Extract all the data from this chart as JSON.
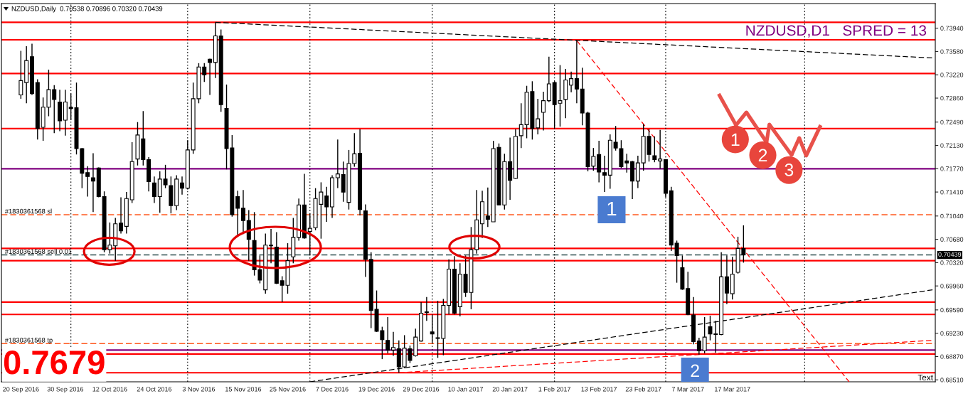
{
  "chart_data": {
    "type": "candlestick",
    "title": "NZDUSD,Daily  0.70538 0.70896 0.70320 0.70439",
    "categories": [
      "20 Sep 2016",
      null,
      null,
      null,
      null,
      null,
      null,
      null,
      "30 Sep 2016",
      null,
      null,
      null,
      null,
      null,
      null,
      null,
      "12 Oct 2016",
      null,
      null,
      null,
      null,
      null,
      null,
      null,
      "24 Oct 2016",
      null,
      null,
      null,
      null,
      null,
      null,
      null,
      "3 Nov 2016",
      null,
      null,
      null,
      null,
      null,
      null,
      null,
      "15 Nov 2016",
      null,
      null,
      null,
      null,
      null,
      null,
      null,
      "25 Nov 2016",
      null,
      null,
      null,
      null,
      null,
      null,
      null,
      "7 Dec 2016",
      null,
      null,
      null,
      null,
      null,
      null,
      null,
      "19 Dec 2016",
      null,
      null,
      null,
      null,
      null,
      null,
      null,
      "29 Dec 2016",
      null,
      null,
      null,
      null,
      null,
      null,
      null,
      "10 Jan 2017",
      null,
      null,
      null,
      null,
      null,
      null,
      null,
      "20 Jan 2017",
      null,
      null,
      null,
      null,
      null,
      null,
      null,
      "1 Feb 2017",
      null,
      null,
      null,
      null,
      null,
      null,
      null,
      "13 Feb 2017",
      null,
      null,
      null,
      null,
      null,
      null,
      null,
      "23 Feb 2017",
      null,
      null,
      null,
      null,
      null,
      null,
      null,
      "7 Mar 2017",
      null,
      null,
      null,
      null,
      null,
      null,
      null,
      "17 Mar 2017",
      null,
      null,
      null,
      null,
      null,
      null,
      null,
      null,
      null,
      null,
      null,
      null,
      null,
      null,
      null,
      null,
      null,
      null,
      null,
      null,
      null,
      null,
      null,
      null,
      null,
      null,
      null,
      null,
      null,
      null,
      null,
      null,
      null,
      null,
      null,
      null
    ],
    "ohlc": [
      [
        0.7291,
        0.7359,
        0.7285,
        0.7313
      ],
      [
        0.731,
        0.7366,
        0.7278,
        0.7344
      ],
      [
        0.735,
        0.737,
        0.7291,
        0.7293
      ],
      [
        0.731,
        0.7315,
        0.7222,
        0.7239
      ],
      [
        0.7241,
        0.7287,
        0.722,
        0.7272
      ],
      [
        0.7272,
        0.733,
        0.7258,
        0.7299
      ],
      [
        0.7299,
        0.7306,
        0.7232,
        0.7284
      ],
      [
        0.728,
        0.7299,
        0.7235,
        0.7251
      ],
      [
        0.7252,
        0.7299,
        0.7228,
        0.728
      ],
      [
        0.7272,
        0.7293,
        0.7252,
        0.727
      ],
      [
        0.7271,
        0.731,
        0.7199,
        0.7208
      ],
      [
        0.7208,
        0.7209,
        0.7147,
        0.717
      ],
      [
        0.7171,
        0.7181,
        0.7134,
        0.7165
      ],
      [
        0.7163,
        0.7201,
        0.711,
        0.7158
      ],
      [
        0.7178,
        0.7179,
        0.7133,
        0.7134
      ],
      [
        0.7134,
        0.7142,
        0.7048,
        0.7052
      ],
      [
        0.7052,
        0.7094,
        0.7046,
        0.7059
      ],
      [
        0.7058,
        0.7101,
        0.7035,
        0.7092
      ],
      [
        0.7093,
        0.7133,
        0.7077,
        0.7081
      ],
      [
        0.7088,
        0.7141,
        0.7077,
        0.7131
      ],
      [
        0.7129,
        0.7218,
        0.7124,
        0.7188
      ],
      [
        0.7192,
        0.7249,
        0.7182,
        0.7229
      ],
      [
        0.7223,
        0.7266,
        0.7182,
        0.7191
      ],
      [
        0.7191,
        0.7195,
        0.7142,
        0.7157
      ],
      [
        0.7155,
        0.7165,
        0.7124,
        0.7134
      ],
      [
        0.7134,
        0.7173,
        0.7109,
        0.7161
      ],
      [
        0.7161,
        0.7183,
        0.7147,
        0.7152
      ],
      [
        0.7151,
        0.7165,
        0.7108,
        0.712
      ],
      [
        0.712,
        0.7167,
        0.7113,
        0.7161
      ],
      [
        0.7155,
        0.7165,
        0.7137,
        0.7147
      ],
      [
        0.7147,
        0.7221,
        0.7145,
        0.7206
      ],
      [
        0.7206,
        0.731,
        0.72,
        0.7285
      ],
      [
        0.7285,
        0.734,
        0.7278,
        0.7334
      ],
      [
        0.7334,
        0.734,
        0.7311,
        0.7322
      ],
      [
        0.7346,
        0.7347,
        0.7291,
        0.7341
      ],
      [
        0.7341,
        0.7403,
        0.7317,
        0.7382
      ],
      [
        0.7382,
        0.7392,
        0.7265,
        0.7276
      ],
      [
        0.727,
        0.7307,
        0.7176,
        0.7208
      ],
      [
        0.7209,
        0.7229,
        0.7103,
        0.7106
      ],
      [
        0.7134,
        0.7143,
        0.7073,
        0.7116
      ],
      [
        0.7116,
        0.7144,
        0.7076,
        0.7097
      ],
      [
        0.7097,
        0.7113,
        0.7035,
        0.7068
      ],
      [
        0.7066,
        0.711,
        0.7012,
        0.7021
      ],
      [
        0.7021,
        0.7043,
        0.7,
        0.7005
      ],
      [
        0.699,
        0.7077,
        0.6984,
        0.7059
      ],
      [
        0.7059,
        0.7084,
        0.7031,
        0.7058
      ],
      [
        0.7056,
        0.7079,
        0.6999,
        0.7
      ],
      [
        0.7004,
        0.7011,
        0.6971,
        0.6997
      ],
      [
        0.6997,
        0.7062,
        0.6984,
        0.7035
      ],
      [
        0.7041,
        0.7101,
        0.7031,
        0.7071
      ],
      [
        0.7071,
        0.7131,
        0.7066,
        0.7121
      ],
      [
        0.7121,
        0.7169,
        0.7069,
        0.707
      ],
      [
        0.708,
        0.7108,
        0.7043,
        0.7085
      ],
      [
        0.7086,
        0.7147,
        0.7082,
        0.7131
      ],
      [
        0.7122,
        0.7156,
        0.7069,
        0.7141
      ],
      [
        0.7135,
        0.7149,
        0.7095,
        0.7118
      ],
      [
        0.7118,
        0.7167,
        0.7101,
        0.7163
      ],
      [
        0.7163,
        0.7222,
        0.7147,
        0.7169
      ],
      [
        0.7168,
        0.7188,
        0.7126,
        0.7141
      ],
      [
        0.7125,
        0.7206,
        0.7114,
        0.7185
      ],
      [
        0.7185,
        0.7232,
        0.718,
        0.72
      ],
      [
        0.7201,
        0.7238,
        0.7105,
        0.7114
      ],
      [
        0.7112,
        0.7122,
        0.701,
        0.7037
      ],
      [
        0.7037,
        0.7048,
        0.6931,
        0.6958
      ],
      [
        0.696,
        0.6989,
        0.6925,
        0.6926
      ],
      [
        0.6927,
        0.6933,
        0.6883,
        0.6913
      ],
      [
        0.6912,
        0.6948,
        0.6892,
        0.6897
      ],
      [
        0.6897,
        0.6925,
        0.6888,
        0.6901
      ],
      [
        0.6899,
        0.6912,
        0.6862,
        0.6871
      ],
      [
        0.6871,
        0.692,
        0.6869,
        0.69
      ],
      [
        0.6899,
        0.6904,
        0.6877,
        0.6881
      ],
      [
        0.6888,
        0.693,
        0.6887,
        0.6917
      ],
      [
        0.6911,
        0.6971,
        0.691,
        0.6954
      ],
      [
        0.6956,
        0.6979,
        0.6942,
        0.6955
      ],
      [
        0.6925,
        0.6951,
        0.6908,
        0.6922
      ],
      [
        0.6916,
        0.6973,
        0.6885,
        0.6915
      ],
      [
        0.6915,
        0.6976,
        0.6889,
        0.6966
      ],
      [
        0.6966,
        0.7037,
        0.6952,
        0.7022
      ],
      [
        0.7022,
        0.7042,
        0.6952,
        0.6954
      ],
      [
        0.6964,
        0.7031,
        0.6949,
        0.7014
      ],
      [
        0.7014,
        0.7043,
        0.6979,
        0.6986
      ],
      [
        0.6986,
        0.7087,
        0.696,
        0.7052
      ],
      [
        0.7052,
        0.7144,
        0.7046,
        0.7098
      ],
      [
        0.7092,
        0.7143,
        0.707,
        0.7126
      ],
      [
        0.7104,
        0.7148,
        0.7087,
        0.7099
      ],
      [
        0.7095,
        0.722,
        0.7095,
        0.7208
      ],
      [
        0.721,
        0.7216,
        0.7121,
        0.7121
      ],
      [
        0.7121,
        0.72,
        0.7114,
        0.7188
      ],
      [
        0.7188,
        0.7225,
        0.7129,
        0.7159
      ],
      [
        0.7162,
        0.7238,
        0.7161,
        0.7227
      ],
      [
        0.7228,
        0.7278,
        0.7209,
        0.7245
      ],
      [
        0.7245,
        0.7305,
        0.7224,
        0.7295
      ],
      [
        0.7296,
        0.7312,
        0.7222,
        0.7239
      ],
      [
        0.724,
        0.7285,
        0.723,
        0.7254
      ],
      [
        0.7264,
        0.7296,
        0.7236,
        0.7282
      ],
      [
        0.7282,
        0.735,
        0.728,
        0.7308
      ],
      [
        0.731,
        0.7312,
        0.724,
        0.7276
      ],
      [
        0.7278,
        0.7337,
        0.7242,
        0.7282
      ],
      [
        0.7284,
        0.7331,
        0.7255,
        0.7314
      ],
      [
        0.7306,
        0.7327,
        0.7295,
        0.7316
      ],
      [
        0.7316,
        0.7375,
        0.7278,
        0.73
      ],
      [
        0.73,
        0.7333,
        0.7244,
        0.7263
      ],
      [
        0.7263,
        0.7265,
        0.7173,
        0.718
      ],
      [
        0.7181,
        0.7209,
        0.7174,
        0.7196
      ],
      [
        0.7199,
        0.722,
        0.7156,
        0.7172
      ],
      [
        0.7171,
        0.7197,
        0.7141,
        0.7167
      ],
      [
        0.7167,
        0.723,
        0.7146,
        0.7221
      ],
      [
        0.7218,
        0.7243,
        0.7205,
        0.7209
      ],
      [
        0.7208,
        0.7221,
        0.7178,
        0.718
      ],
      [
        0.7189,
        0.72,
        0.7171,
        0.7186
      ],
      [
        0.7188,
        0.7189,
        0.713,
        0.7158
      ],
      [
        0.7158,
        0.7197,
        0.7147,
        0.7186
      ],
      [
        0.7186,
        0.7246,
        0.7174,
        0.7227
      ],
      [
        0.7227,
        0.7238,
        0.7188,
        0.7199
      ],
      [
        0.7197,
        0.7227,
        0.7187,
        0.7191
      ],
      [
        0.7189,
        0.7237,
        0.7177,
        0.7192
      ],
      [
        0.7191,
        0.7192,
        0.7133,
        0.7139
      ],
      [
        0.7143,
        0.7149,
        0.705,
        0.7059
      ],
      [
        0.7062,
        0.7066,
        0.7001,
        0.7043
      ],
      [
        0.7024,
        0.7043,
        0.699,
        0.6991
      ],
      [
        0.6992,
        0.7018,
        0.6951,
        0.6952
      ],
      [
        0.6951,
        0.6979,
        0.6906,
        0.691
      ],
      [
        0.6911,
        0.6916,
        0.689,
        0.6896
      ],
      [
        0.6896,
        0.6948,
        0.6892,
        0.6917
      ],
      [
        0.6933,
        0.695,
        0.6912,
        0.6922
      ],
      [
        0.6922,
        0.6942,
        0.6893,
        0.6921
      ],
      [
        0.6921,
        0.7048,
        0.692,
        0.701
      ],
      [
        0.701,
        0.7043,
        0.6968,
        0.6985
      ],
      [
        0.6984,
        0.7041,
        0.6975,
        0.7014
      ],
      [
        0.7017,
        0.7072,
        0.7015,
        0.7054
      ],
      [
        0.70538,
        0.70896,
        0.7032,
        0.70439
      ],
      null,
      null,
      null,
      null,
      null,
      null,
      null,
      null,
      null,
      null,
      null,
      null,
      null,
      null,
      null,
      null,
      null,
      null,
      null,
      null,
      null,
      null,
      null,
      null,
      null,
      null,
      null,
      null,
      null,
      null,
      null,
      null,
      null,
      null
    ],
    "series": [
      {
        "type": "line",
        "color": "#000000",
        "values": [
          null,
          null,
          null,
          null,
          null,
          null,
          null,
          null,
          null,
          null,
          null,
          null,
          null,
          null,
          null,
          null,
          null,
          null,
          null,
          null,
          null,
          null,
          null,
          null,
          null,
          null,
          null,
          null,
          null,
          null,
          null,
          null,
          null,
          null,
          null,
          0.7403,
          null,
          null,
          null,
          null,
          null,
          null,
          null,
          null,
          null,
          null,
          null,
          null,
          null,
          null,
          null,
          null,
          null,
          null,
          null,
          null,
          null,
          null,
          null,
          null,
          null,
          null,
          null,
          null,
          null,
          null,
          null,
          null,
          null,
          null,
          null,
          null,
          null,
          null,
          null,
          null,
          null,
          null,
          null,
          null,
          null,
          null,
          null,
          null,
          null,
          null,
          null,
          null,
          null,
          null,
          null,
          null,
          null,
          null,
          null,
          null,
          null,
          null,
          null,
          null,
          null,
          null,
          null,
          null,
          null,
          null,
          null,
          null,
          null,
          null,
          null,
          null,
          null,
          null,
          null,
          null,
          null,
          null,
          null,
          null,
          null,
          null,
          null,
          null,
          null,
          null,
          null,
          null,
          null,
          null,
          null,
          null,
          null,
          null,
          null,
          null,
          null,
          null,
          null,
          null,
          null,
          null,
          null,
          null,
          null,
          null,
          null,
          null,
          null,
          null,
          null,
          null,
          null,
          null,
          null,
          null,
          null,
          null,
          null,
          null,
          null,
          null,
          null,
          null,
          0.7348
        ]
      },
      {
        "type": "line",
        "color": "#ff0000",
        "values": [
          null,
          null,
          null,
          null,
          null,
          null,
          null,
          null,
          null,
          null,
          null,
          null,
          null,
          null,
          null,
          null,
          null,
          null,
          null,
          null,
          null,
          null,
          null,
          null,
          null,
          null,
          null,
          null,
          null,
          null,
          null,
          null,
          null,
          null,
          null,
          null,
          null,
          null,
          null,
          null,
          null,
          null,
          null,
          null,
          null,
          null,
          null,
          null,
          null,
          null,
          null,
          null,
          null,
          null,
          null,
          null,
          null,
          null,
          null,
          null,
          null,
          null,
          null,
          null,
          null,
          null,
          null,
          null,
          null,
          null,
          null,
          null,
          null,
          null,
          null,
          null,
          null,
          null,
          null,
          null,
          null,
          null,
          null,
          null,
          null,
          null,
          null,
          null,
          null,
          null,
          null,
          null,
          null,
          null,
          null,
          null,
          null,
          null,
          null,
          null,
          0.7375,
          null,
          null,
          null,
          null,
          null,
          null,
          null,
          null,
          null,
          null,
          null,
          null,
          null,
          null,
          null,
          null,
          null,
          null,
          null,
          null,
          null,
          null,
          null,
          null,
          null,
          null,
          null,
          null,
          null,
          null,
          null,
          null,
          null,
          null,
          null,
          null,
          null,
          null,
          null,
          null,
          null,
          null,
          null,
          null,
          null,
          null,
          null,
          null,
          0.6848,
          null,
          null,
          null,
          null,
          null,
          null,
          null,
          null,
          null,
          null,
          null,
          null,
          null,
          null,
          null
        ]
      },
      {
        "type": "line",
        "color": "#000000",
        "values": [
          null,
          null,
          null,
          null,
          null,
          null,
          null,
          null,
          null,
          null,
          null,
          null,
          null,
          null,
          null,
          null,
          null,
          null,
          null,
          null,
          null,
          null,
          null,
          null,
          null,
          null,
          null,
          null,
          null,
          null,
          null,
          null,
          null,
          null,
          null,
          null,
          null,
          null,
          null,
          null,
          null,
          null,
          null,
          null,
          null,
          null,
          null,
          null,
          null,
          null,
          null,
          null,
          0.6848,
          null,
          null,
          null,
          null,
          null,
          null,
          null,
          null,
          null,
          null,
          null,
          null,
          null,
          null,
          null,
          null,
          null,
          null,
          null,
          null,
          null,
          null,
          null,
          null,
          null,
          null,
          null,
          null,
          null,
          null,
          null,
          null,
          null,
          null,
          null,
          null,
          null,
          null,
          null,
          null,
          null,
          null,
          null,
          null,
          null,
          null,
          null,
          null,
          null,
          null,
          null,
          null,
          null,
          null,
          null,
          null,
          null,
          null,
          null,
          null,
          null,
          null,
          null,
          null,
          null,
          null,
          null,
          null,
          null,
          null,
          null,
          null,
          null,
          null,
          null,
          null,
          null,
          null,
          null,
          null,
          null,
          null,
          null,
          null,
          null,
          null,
          null,
          null,
          null,
          null,
          null,
          null,
          null,
          null,
          null,
          null,
          null,
          null,
          null,
          null,
          null,
          null,
          null,
          null,
          null,
          null,
          null,
          null,
          null,
          null,
          null,
          0.699
        ]
      },
      {
        "type": "line",
        "color": "#ff0000",
        "values": [
          null,
          null,
          null,
          null,
          null,
          null,
          null,
          null,
          null,
          null,
          null,
          null,
          null,
          null,
          null,
          null,
          null,
          null,
          null,
          null,
          null,
          null,
          null,
          null,
          null,
          null,
          null,
          null,
          null,
          null,
          null,
          null,
          null,
          null,
          null,
          null,
          null,
          null,
          null,
          null,
          null,
          null,
          null,
          null,
          null,
          null,
          null,
          null,
          null,
          null,
          null,
          null,
          null,
          null,
          null,
          null,
          null,
          null,
          null,
          null,
          null,
          null,
          null,
          null,
          null,
          null,
          null,
          null,
          0.6862,
          null,
          null,
          null,
          null,
          null,
          null,
          null,
          null,
          null,
          null,
          null,
          null,
          null,
          null,
          null,
          null,
          null,
          null,
          null,
          null,
          null,
          null,
          null,
          null,
          null,
          null,
          null,
          null,
          null,
          null,
          null,
          null,
          null,
          null,
          null,
          null,
          null,
          null,
          null,
          null,
          null,
          null,
          null,
          null,
          null,
          null,
          null,
          null,
          null,
          null,
          null,
          null,
          null,
          null,
          null,
          null,
          null,
          null,
          null,
          null,
          null,
          null,
          null,
          null,
          null,
          null,
          null,
          null,
          null,
          null,
          null,
          null,
          null,
          null,
          null,
          null,
          null,
          null,
          null,
          null,
          null,
          null,
          null,
          null,
          null,
          null,
          null,
          null,
          null,
          null,
          null,
          null,
          null,
          null,
          null,
          0.6912
        ]
      }
    ],
    "line_style": "dashed",
    "ylim": [
      0.6848,
      0.7432
    ],
    "yticks": [
      {
        "value": 0.7394,
        "label": "0.73940"
      },
      {
        "value": 0.7358,
        "label": "0.73580"
      },
      {
        "value": 0.7322,
        "label": "0.73220"
      },
      {
        "value": 0.7286,
        "label": "0.72860"
      },
      {
        "value": 0.7249,
        "label": "0.72490"
      },
      {
        "value": 0.7213,
        "label": "0.72130"
      },
      {
        "value": 0.7177,
        "label": "0.71770"
      },
      {
        "value": 0.7141,
        "label": "0.71410"
      },
      {
        "value": 0.7104,
        "label": "0.71040"
      },
      {
        "value": 0.7068,
        "label": "0.70680"
      },
      {
        "value": 0.7032,
        "label": "0.70320"
      },
      {
        "value": 0.6996,
        "label": "0.69960"
      },
      {
        "value": 0.6959,
        "label": "0.69590"
      },
      {
        "value": 0.6923,
        "label": "0.69230"
      },
      {
        "value": 0.6887,
        "label": "0.68870"
      },
      {
        "value": 0.6851,
        "label": "0.68510"
      }
    ],
    "ref_lines": [
      {
        "axis": "y",
        "value": 0.7403,
        "color": "#ff0000"
      },
      {
        "axis": "y",
        "value": 0.7376,
        "color": "#ff0000"
      },
      {
        "axis": "y",
        "value": 0.7324,
        "color": "#ff0000"
      },
      {
        "axis": "y",
        "value": 0.7239,
        "color": "#ff0000"
      },
      {
        "axis": "y",
        "value": 0.7177,
        "color": "#800080"
      },
      {
        "axis": "y",
        "value": 0.7106,
        "color": "#ff5a1f",
        "line_style": "dashed",
        "label": "#1830361568 sl"
      },
      {
        "axis": "y",
        "value": 0.7054,
        "color": "#ff0000"
      },
      {
        "axis": "y",
        "value": 0.70439,
        "color": "#2f4f4f",
        "line_style": "dashed",
        "label": "#1830361568 sell 0.01"
      },
      {
        "axis": "y",
        "value": 0.7035,
        "color": "#ff0000"
      },
      {
        "axis": "y",
        "value": 0.6971,
        "color": "#ff0000"
      },
      {
        "axis": "y",
        "value": 0.6952,
        "color": "#ff0000"
      },
      {
        "axis": "y",
        "value": 0.6907,
        "color": "#ff5a1f",
        "line_style": "dashed",
        "label": "#1830361568 tp"
      },
      {
        "axis": "y",
        "value": 0.6897,
        "color": "#800080"
      },
      {
        "axis": "y",
        "value": 0.6891,
        "color": "#ff0000"
      },
      {
        "axis": "y",
        "value": 0.6862,
        "color": "#ff0000"
      }
    ],
    "annotations": [
      "NZDUSD,D1   SPRED = 13",
      "0.7679",
      "Text",
      "1",
      "2",
      "1",
      "2",
      "3",
      "0.70439"
    ]
  }
}
